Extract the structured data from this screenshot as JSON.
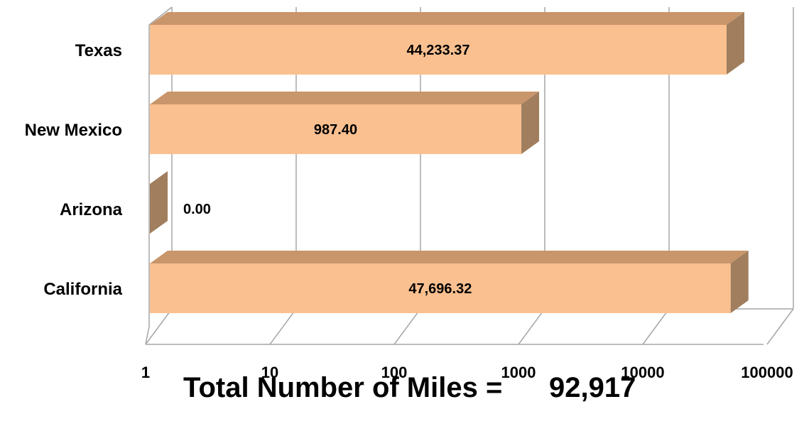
{
  "chart_data": {
    "type": "bar",
    "orientation": "horizontal",
    "style": "3d",
    "x_scale": "log",
    "xlim": [
      1,
      100000
    ],
    "x_ticks": [
      "1",
      "10",
      "100",
      "1000",
      "10000",
      "100000"
    ],
    "x_tick_values": [
      1,
      10,
      100,
      1000,
      10000,
      100000
    ],
    "grid": "vertical major gridlines",
    "legend": "none",
    "categories": [
      "California",
      "Arizona",
      "New Mexico",
      "Texas"
    ],
    "values": [
      47696.32,
      0.0,
      987.4,
      44233.37
    ],
    "data_labels": [
      "47,696.32",
      "0.00",
      "987.40",
      "44,233.37"
    ],
    "bar_color": "#FAC090",
    "bar_top_color": "#C9956A",
    "bar_side_color": "#A07E5E",
    "gridline_color": "#A6A6A6"
  },
  "footer": {
    "caption": "Total Number of Miles =",
    "total": "92,917"
  }
}
